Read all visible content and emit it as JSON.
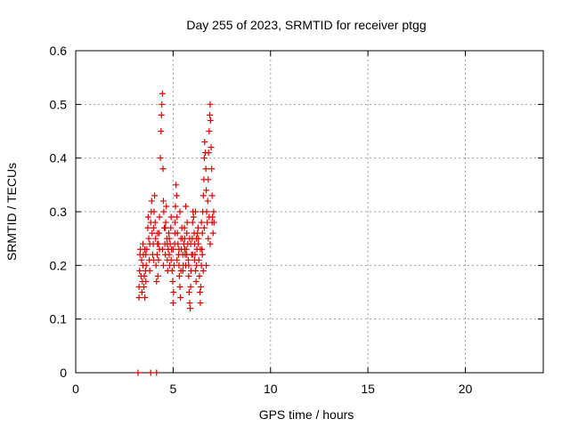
{
  "chart_data": {
    "type": "scatter",
    "title": "Day 255 of 2023, SRMTID for receiver ptgg",
    "xlabel": "GPS time / hours",
    "ylabel": "SRMTID / TECUs",
    "xlim": [
      0,
      24
    ],
    "ylim": [
      0,
      0.6
    ],
    "xticks": [
      0,
      5,
      10,
      15,
      20
    ],
    "yticks": [
      0,
      0.1,
      0.2,
      0.3,
      0.4,
      0.5,
      0.6
    ],
    "xtick_labels": [
      "0",
      "5",
      "10",
      "15",
      "20"
    ],
    "ytick_labels": [
      "0",
      "0.1",
      "0.2",
      "0.3",
      "0.4",
      "0.5",
      "0.6"
    ],
    "grid": true,
    "marker": "+",
    "series": [
      {
        "name": "SRMTID",
        "color": "#e00000",
        "points": [
          [
            3.2,
            0.0
          ],
          [
            3.85,
            0.0
          ],
          [
            4.15,
            0.0
          ],
          [
            3.25,
            0.14
          ],
          [
            3.25,
            0.16
          ],
          [
            3.28,
            0.19
          ],
          [
            3.3,
            0.22
          ],
          [
            3.32,
            0.23
          ],
          [
            3.35,
            0.18
          ],
          [
            3.38,
            0.21
          ],
          [
            3.4,
            0.15
          ],
          [
            3.42,
            0.17
          ],
          [
            3.45,
            0.2
          ],
          [
            3.48,
            0.22
          ],
          [
            3.5,
            0.16
          ],
          [
            3.52,
            0.18
          ],
          [
            3.55,
            0.14
          ],
          [
            3.58,
            0.19
          ],
          [
            3.6,
            0.17
          ],
          [
            3.62,
            0.2
          ],
          [
            3.65,
            0.23
          ],
          [
            3.7,
            0.27
          ],
          [
            3.72,
            0.29
          ],
          [
            3.75,
            0.25
          ],
          [
            3.78,
            0.21
          ],
          [
            3.8,
            0.24
          ],
          [
            3.85,
            0.28
          ],
          [
            3.88,
            0.3
          ],
          [
            3.9,
            0.32
          ],
          [
            3.92,
            0.26
          ],
          [
            3.95,
            0.22
          ],
          [
            3.98,
            0.24
          ],
          [
            4.0,
            0.27
          ],
          [
            4.02,
            0.3
          ],
          [
            4.05,
            0.33
          ],
          [
            4.08,
            0.28
          ],
          [
            4.1,
            0.25
          ],
          [
            4.12,
            0.2
          ],
          [
            4.15,
            0.17
          ],
          [
            4.18,
            0.22
          ],
          [
            4.2,
            0.24
          ],
          [
            4.22,
            0.18
          ],
          [
            4.25,
            0.21
          ],
          [
            4.28,
            0.26
          ],
          [
            4.3,
            0.29
          ],
          [
            4.35,
            0.4
          ],
          [
            4.38,
            0.45
          ],
          [
            4.4,
            0.48
          ],
          [
            4.42,
            0.5
          ],
          [
            4.45,
            0.52
          ],
          [
            4.48,
            0.38
          ],
          [
            4.5,
            0.32
          ],
          [
            4.52,
            0.3
          ],
          [
            4.55,
            0.27
          ],
          [
            4.58,
            0.24
          ],
          [
            4.6,
            0.22
          ],
          [
            4.62,
            0.28
          ],
          [
            4.65,
            0.31
          ],
          [
            4.68,
            0.25
          ],
          [
            4.7,
            0.21
          ],
          [
            4.72,
            0.19
          ],
          [
            4.75,
            0.23
          ],
          [
            4.78,
            0.26
          ],
          [
            4.8,
            0.22
          ],
          [
            4.82,
            0.2
          ],
          [
            4.85,
            0.24
          ],
          [
            4.88,
            0.27
          ],
          [
            4.9,
            0.29
          ],
          [
            4.92,
            0.23
          ],
          [
            4.95,
            0.19
          ],
          [
            4.98,
            0.17
          ],
          [
            5.0,
            0.13
          ],
          [
            5.02,
            0.15
          ],
          [
            5.05,
            0.2
          ],
          [
            5.08,
            0.24
          ],
          [
            5.1,
            0.28
          ],
          [
            5.12,
            0.31
          ],
          [
            5.15,
            0.35
          ],
          [
            5.18,
            0.33
          ],
          [
            5.2,
            0.29
          ],
          [
            5.22,
            0.26
          ],
          [
            5.25,
            0.24
          ],
          [
            5.28,
            0.22
          ],
          [
            5.3,
            0.2
          ],
          [
            5.32,
            0.18
          ],
          [
            5.35,
            0.16
          ],
          [
            5.38,
            0.14
          ],
          [
            5.4,
            0.19
          ],
          [
            5.42,
            0.23
          ],
          [
            5.45,
            0.27
          ],
          [
            5.48,
            0.25
          ],
          [
            5.5,
            0.22
          ],
          [
            5.52,
            0.2
          ],
          [
            5.55,
            0.24
          ],
          [
            5.58,
            0.27
          ],
          [
            5.6,
            0.25
          ],
          [
            5.62,
            0.22
          ],
          [
            5.65,
            0.2
          ],
          [
            5.68,
            0.23
          ],
          [
            5.7,
            0.26
          ],
          [
            5.72,
            0.28
          ],
          [
            5.75,
            0.24
          ],
          [
            5.78,
            0.21
          ],
          [
            5.8,
            0.18
          ],
          [
            5.82,
            0.15
          ],
          [
            5.85,
            0.13
          ],
          [
            5.88,
            0.12
          ],
          [
            5.9,
            0.16
          ],
          [
            5.92,
            0.19
          ],
          [
            5.95,
            0.22
          ],
          [
            5.98,
            0.25
          ],
          [
            6.0,
            0.28
          ],
          [
            6.02,
            0.3
          ],
          [
            6.05,
            0.29
          ],
          [
            6.08,
            0.26
          ],
          [
            6.1,
            0.24
          ],
          [
            6.12,
            0.22
          ],
          [
            6.15,
            0.19
          ],
          [
            6.18,
            0.17
          ],
          [
            6.2,
            0.2
          ],
          [
            6.22,
            0.23
          ],
          [
            6.25,
            0.26
          ],
          [
            6.28,
            0.27
          ],
          [
            6.3,
            0.24
          ],
          [
            6.32,
            0.21
          ],
          [
            6.35,
            0.18
          ],
          [
            6.38,
            0.15
          ],
          [
            6.4,
            0.13
          ],
          [
            6.42,
            0.16
          ],
          [
            6.45,
            0.2
          ],
          [
            6.48,
            0.23
          ],
          [
            6.5,
            0.26
          ],
          [
            6.52,
            0.3
          ],
          [
            6.55,
            0.33
          ],
          [
            6.58,
            0.36
          ],
          [
            6.6,
            0.4
          ],
          [
            6.62,
            0.43
          ],
          [
            6.65,
            0.41
          ],
          [
            6.68,
            0.38
          ],
          [
            6.7,
            0.34
          ],
          [
            6.72,
            0.3
          ],
          [
            6.75,
            0.28
          ],
          [
            6.78,
            0.32
          ],
          [
            6.8,
            0.36
          ],
          [
            6.82,
            0.41
          ],
          [
            6.85,
            0.45
          ],
          [
            6.88,
            0.48
          ],
          [
            6.9,
            0.5
          ],
          [
            6.92,
            0.47
          ],
          [
            6.95,
            0.42
          ],
          [
            6.98,
            0.38
          ],
          [
            7.0,
            0.33
          ],
          [
            7.02,
            0.29
          ],
          [
            7.05,
            0.26
          ],
          [
            7.08,
            0.3
          ],
          [
            7.1,
            0.28
          ],
          [
            4.3,
            0.23
          ],
          [
            4.5,
            0.2
          ],
          [
            4.7,
            0.24
          ],
          [
            4.9,
            0.21
          ],
          [
            5.1,
            0.26
          ],
          [
            5.3,
            0.23
          ],
          [
            5.5,
            0.19
          ],
          [
            5.7,
            0.22
          ],
          [
            5.9,
            0.24
          ],
          [
            6.1,
            0.21
          ],
          [
            6.3,
            0.25
          ],
          [
            6.5,
            0.22
          ],
          [
            6.7,
            0.2
          ],
          [
            6.9,
            0.24
          ],
          [
            3.6,
            0.22
          ],
          [
            3.8,
            0.19
          ],
          [
            4.0,
            0.21
          ],
          [
            4.2,
            0.26
          ],
          [
            4.6,
            0.27
          ],
          [
            4.8,
            0.25
          ],
          [
            5.0,
            0.23
          ],
          [
            5.2,
            0.21
          ],
          [
            5.4,
            0.25
          ],
          [
            5.6,
            0.23
          ],
          [
            5.8,
            0.2
          ],
          [
            6.0,
            0.22
          ],
          [
            6.2,
            0.25
          ],
          [
            6.4,
            0.23
          ],
          [
            6.6,
            0.27
          ],
          [
            6.8,
            0.25
          ],
          [
            7.0,
            0.28
          ],
          [
            3.45,
            0.24
          ],
          [
            3.55,
            0.23
          ],
          [
            5.35,
            0.3
          ],
          [
            5.65,
            0.31
          ],
          [
            6.15,
            0.3
          ],
          [
            6.45,
            0.28
          ],
          [
            6.85,
            0.29
          ],
          [
            4.45,
            0.23
          ],
          [
            4.25,
            0.24
          ],
          [
            5.85,
            0.25
          ],
          [
            6.55,
            0.19
          ]
        ]
      }
    ]
  }
}
